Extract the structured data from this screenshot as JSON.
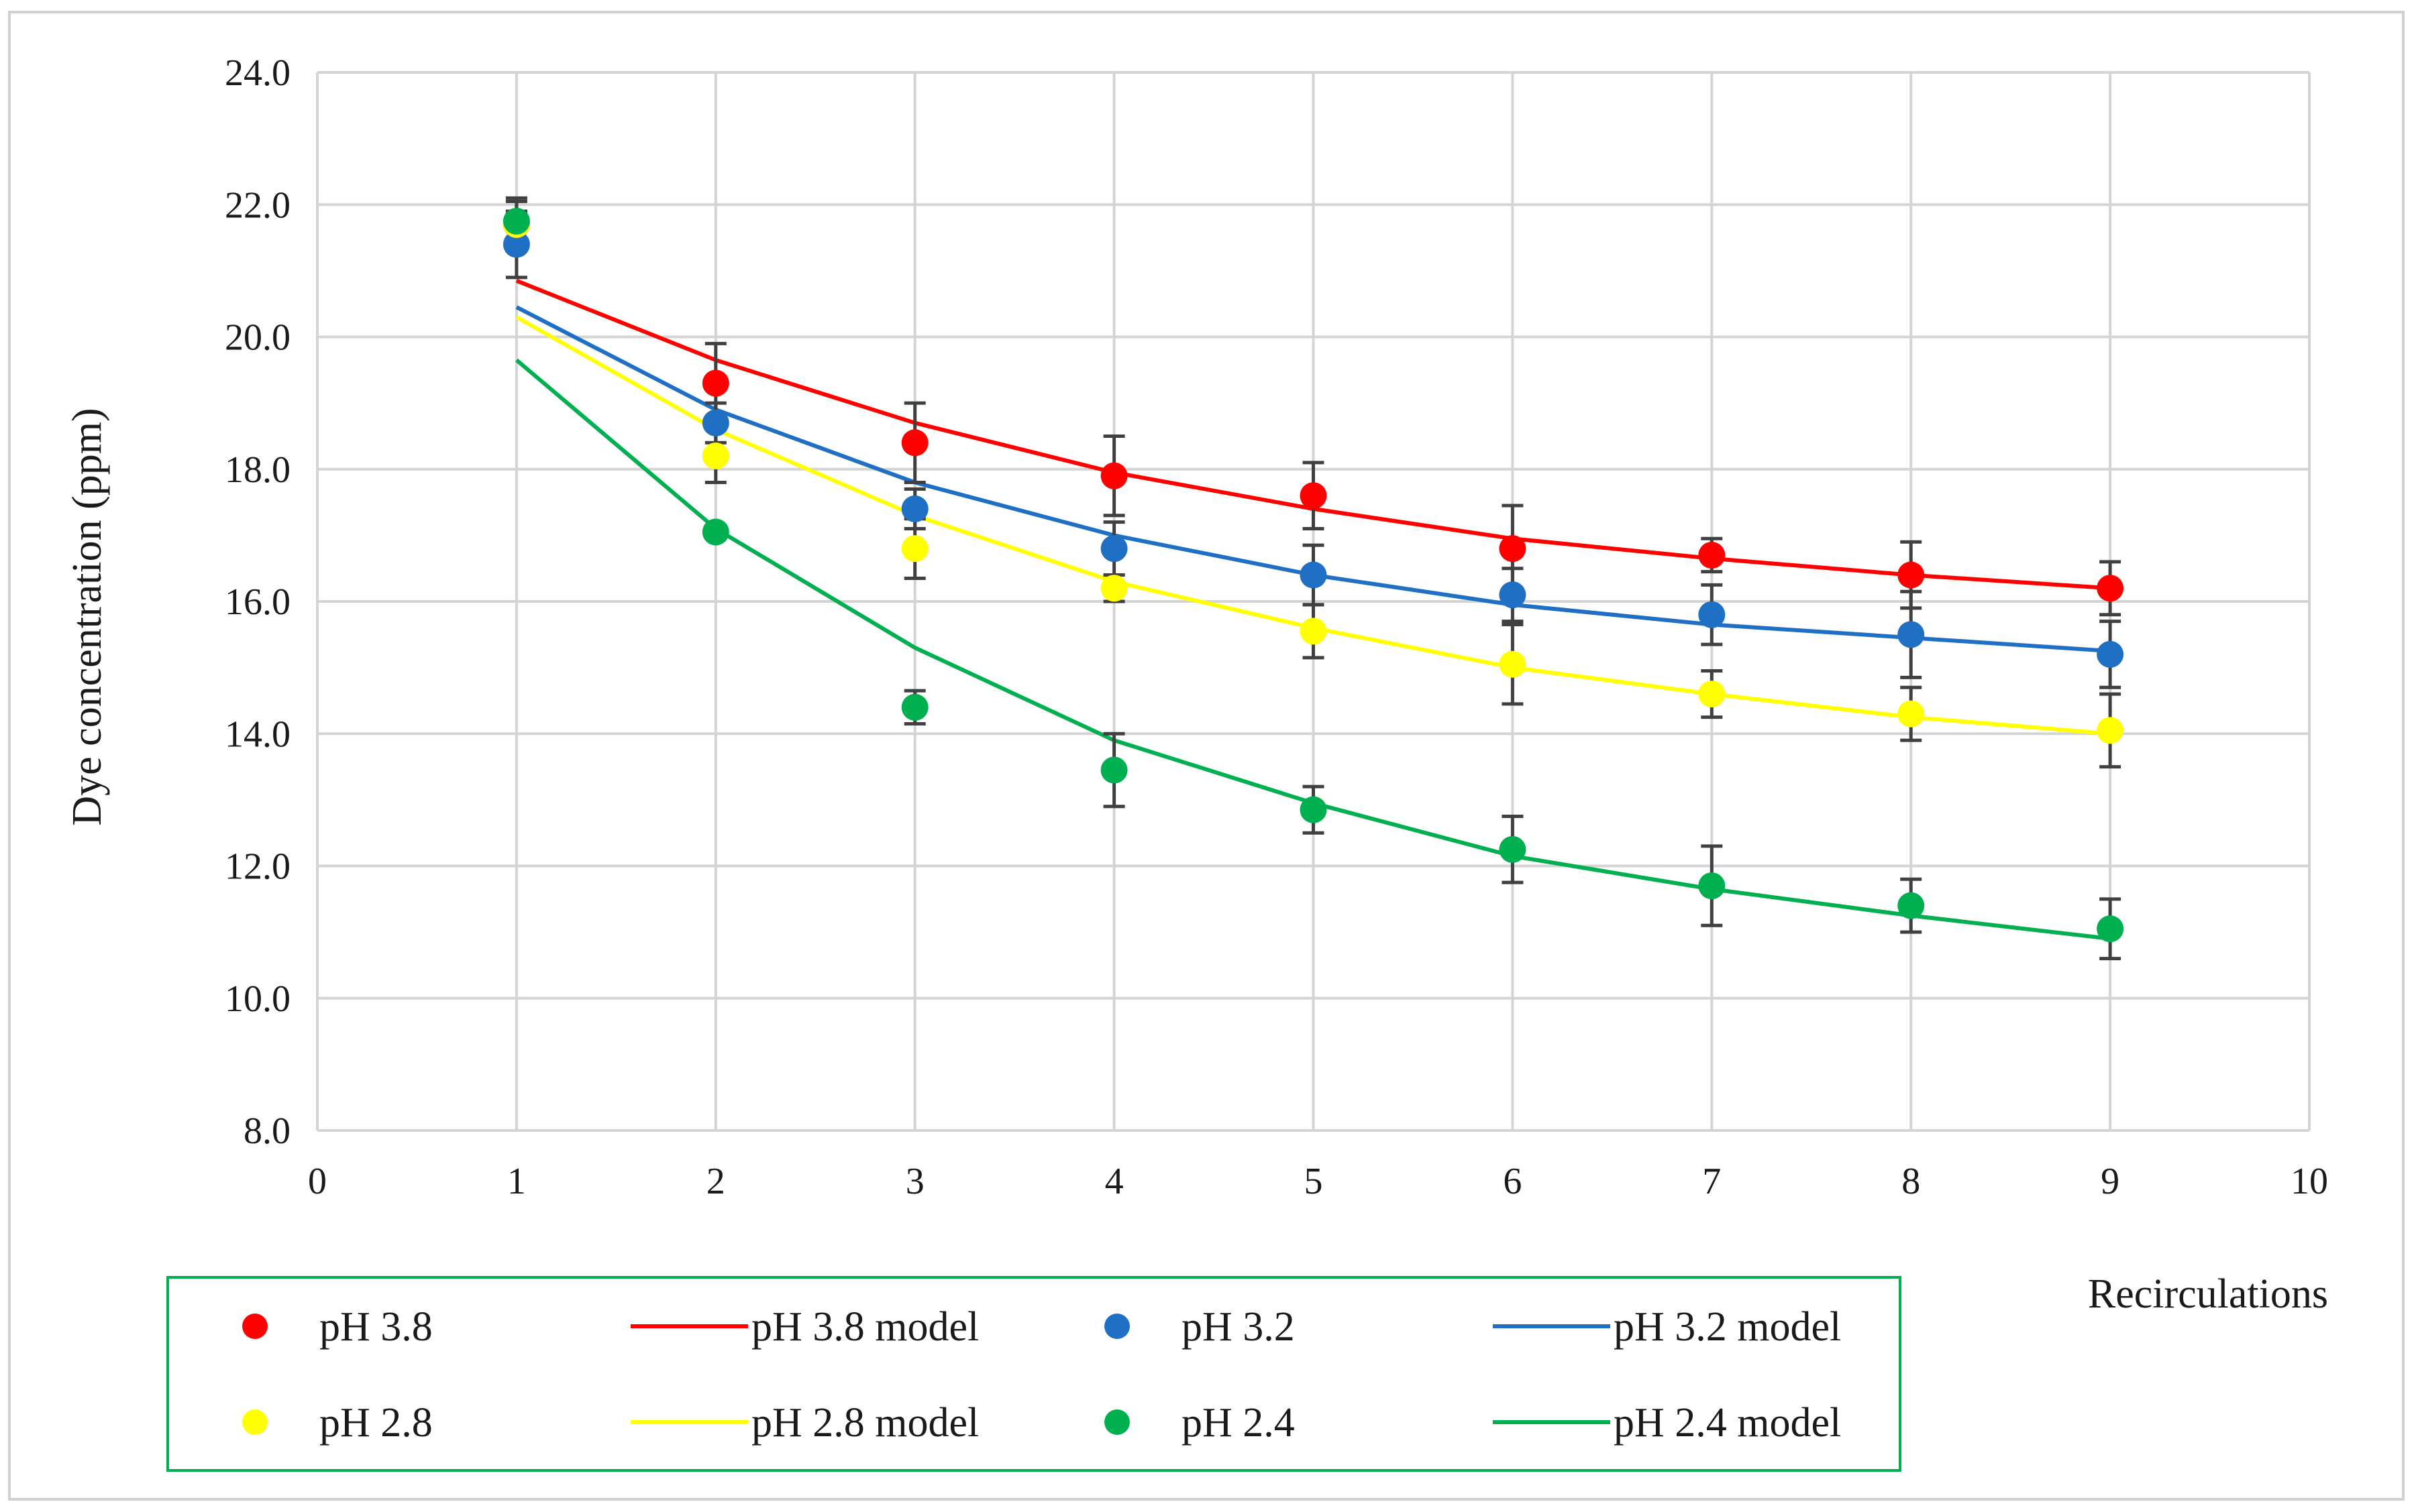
{
  "chart_data": {
    "type": "scatter",
    "xlabel": "Recirculations",
    "ylabel": "Dye concentration  (ppm)",
    "xlim": [
      0,
      10
    ],
    "ylim": [
      8,
      24
    ],
    "x_ticks": [
      "0",
      "1",
      "2",
      "3",
      "4",
      "5",
      "6",
      "7",
      "8",
      "9",
      "10"
    ],
    "y_ticks": [
      "8.0",
      "10.0",
      "12.0",
      "14.0",
      "16.0",
      "18.0",
      "20.0",
      "22.0",
      "24.0"
    ],
    "grid": true,
    "legend_position": "bottom",
    "x": [
      1,
      2,
      3,
      4,
      5,
      6,
      7,
      8,
      9
    ],
    "series": [
      {
        "name": "pH 3.8",
        "kind": "points",
        "color": "#ff0000",
        "values": [
          21.7,
          19.3,
          18.4,
          17.9,
          17.6,
          16.8,
          16.7,
          16.4,
          16.2
        ],
        "errors": [
          0.4,
          0.6,
          0.6,
          0.6,
          0.5,
          0.65,
          0.25,
          0.5,
          0.4
        ]
      },
      {
        "name": "pH 3.8 model",
        "kind": "line",
        "color": "#ff0000",
        "values": [
          20.85,
          19.65,
          18.7,
          17.95,
          17.4,
          16.95,
          16.65,
          16.4,
          16.2
        ]
      },
      {
        "name": "pH 3.2",
        "kind": "points",
        "color": "#1f6fc5",
        "values": [
          21.4,
          18.7,
          17.4,
          16.8,
          16.4,
          16.1,
          15.8,
          15.5,
          15.2
        ],
        "errors": [
          0.5,
          0.3,
          0.3,
          0.4,
          0.45,
          0.4,
          0.45,
          0.65,
          0.5
        ]
      },
      {
        "name": "pH 3.2 model",
        "kind": "line",
        "color": "#1f6fc5",
        "values": [
          20.45,
          18.9,
          17.8,
          17.0,
          16.4,
          15.95,
          15.65,
          15.45,
          15.25
        ]
      },
      {
        "name": "pH 2.8",
        "kind": "points",
        "color": "#ffff00",
        "values": [
          21.7,
          18.2,
          16.8,
          16.2,
          15.55,
          15.05,
          14.6,
          14.3,
          14.05
        ],
        "errors": [
          0.35,
          0.4,
          0.45,
          0.2,
          0.4,
          0.6,
          0.35,
          0.4,
          0.55
        ]
      },
      {
        "name": "pH 2.8 model",
        "kind": "line",
        "color": "#ffff00",
        "values": [
          20.3,
          18.6,
          17.3,
          16.3,
          15.6,
          15.0,
          14.6,
          14.25,
          14.0
        ]
      },
      {
        "name": "pH 2.4",
        "kind": "points",
        "color": "#00b050",
        "values": [
          21.75,
          17.05,
          14.4,
          13.45,
          12.85,
          12.25,
          11.7,
          11.4,
          11.05
        ],
        "errors": [
          0.15,
          0.1,
          0.25,
          0.55,
          0.35,
          0.5,
          0.6,
          0.4,
          0.45
        ]
      },
      {
        "name": "pH 2.4 model",
        "kind": "line",
        "color": "#00b050",
        "values": [
          19.65,
          17.1,
          15.3,
          13.9,
          12.95,
          12.15,
          11.65,
          11.25,
          10.9
        ]
      }
    ],
    "legend": [
      {
        "label": "pH 3.8",
        "kind": "points",
        "color": "#ff0000"
      },
      {
        "label": "pH 3.8 model",
        "kind": "line",
        "color": "#ff0000"
      },
      {
        "label": "pH 3.2",
        "kind": "points",
        "color": "#1f6fc5"
      },
      {
        "label": "pH 3.2 model",
        "kind": "line",
        "color": "#1f6fc5"
      },
      {
        "label": "pH 2.8",
        "kind": "points",
        "color": "#ffff00"
      },
      {
        "label": "pH 2.8 model",
        "kind": "line",
        "color": "#ffff00"
      },
      {
        "label": "pH 2.4",
        "kind": "points",
        "color": "#00b050"
      },
      {
        "label": "pH 2.4 model",
        "kind": "line",
        "color": "#00b050"
      }
    ]
  }
}
